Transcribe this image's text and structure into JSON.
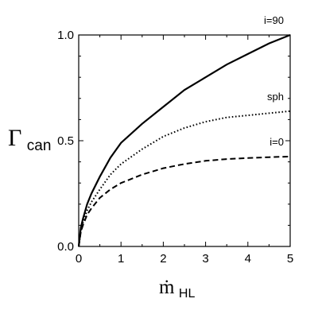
{
  "chart_data": {
    "type": "line",
    "x": [
      0,
      0.05,
      0.1,
      0.2,
      0.3,
      0.5,
      0.75,
      1,
      1.5,
      2,
      2.5,
      3,
      3.5,
      4,
      4.5,
      5
    ],
    "series": [
      {
        "name": "i=90",
        "style": "solid",
        "values": [
          0,
          0.09,
          0.13,
          0.2,
          0.25,
          0.33,
          0.42,
          0.49,
          0.58,
          0.66,
          0.74,
          0.8,
          0.86,
          0.91,
          0.96,
          1.0
        ]
      },
      {
        "name": "sph",
        "style": "dotted",
        "values": [
          0,
          0.07,
          0.11,
          0.17,
          0.21,
          0.27,
          0.34,
          0.39,
          0.46,
          0.52,
          0.56,
          0.59,
          0.61,
          0.62,
          0.63,
          0.64
        ]
      },
      {
        "name": "i=0",
        "style": "dashed",
        "values": [
          0,
          0.07,
          0.1,
          0.15,
          0.18,
          0.23,
          0.27,
          0.3,
          0.34,
          0.37,
          0.39,
          0.405,
          0.413,
          0.418,
          0.422,
          0.425
        ]
      }
    ],
    "xlim": [
      0,
      5
    ],
    "ylim": [
      0,
      1
    ],
    "xticks": [
      0,
      1,
      2,
      3,
      4,
      5
    ],
    "yticks": [
      0.0,
      0.5,
      1.0
    ],
    "xtick_labels": [
      "0",
      "1",
      "2",
      "3",
      "4",
      "5"
    ],
    "ytick_labels": [
      "0.0",
      "0.5",
      "1.0"
    ],
    "xlabel": "ṁ",
    "xlabel_sub": "HL",
    "ylabel": "Γ",
    "ylabel_sub": "can",
    "grid": false,
    "legend": "inline labels"
  }
}
